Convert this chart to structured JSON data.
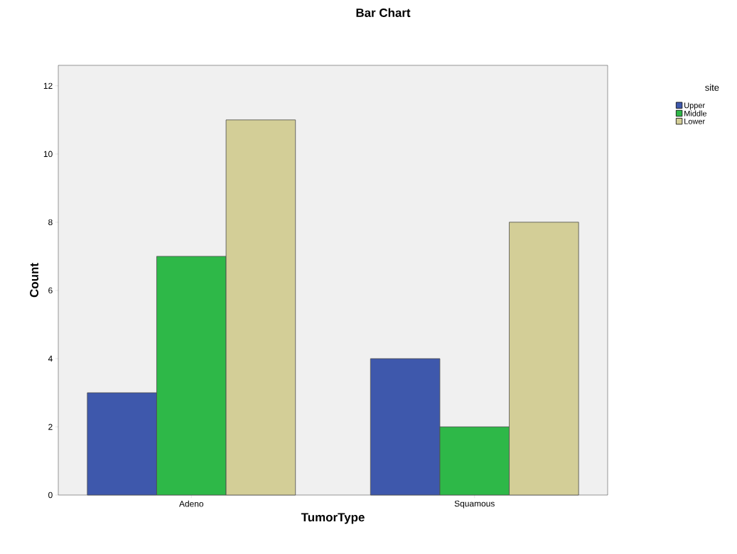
{
  "chart_data": {
    "type": "bar",
    "title": "Bar Chart",
    "xlabel": "TumorType",
    "ylabel": "Count",
    "legend_title": "site",
    "categories": [
      "Adeno",
      "Squamous"
    ],
    "series": [
      {
        "name": "Upper",
        "color": "#3e58ac",
        "values": [
          3,
          4
        ]
      },
      {
        "name": "Middle",
        "color": "#2eb848",
        "values": [
          7,
          2
        ]
      },
      {
        "name": "Lower",
        "color": "#d3ce97",
        "values": [
          11,
          8
        ]
      }
    ],
    "ylim": [
      0,
      12.6
    ],
    "yticks": [
      0,
      2,
      4,
      6,
      8,
      10,
      12
    ],
    "grid": false,
    "legend": "top right"
  }
}
